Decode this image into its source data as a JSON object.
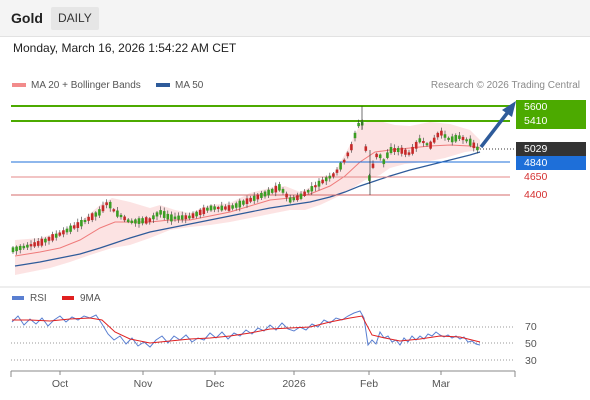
{
  "header": {
    "title": "Gold",
    "timeframe": "DAILY"
  },
  "timestamp": "Monday, March 16, 2026 1:54:22 AM CET",
  "legend": [
    {
      "label": "MA 20 + Bollinger Bands",
      "color": "#f28b8b"
    },
    {
      "label": "MA 50",
      "color": "#2e5b9a"
    }
  ],
  "credit": "Research © 2026 Trading Central",
  "levels": {
    "target_high": "5600",
    "target": "5410",
    "last": "5029",
    "pivot": "4840",
    "support1": "4650",
    "support2": "4400"
  },
  "rsi_legend": [
    {
      "label": "RSI",
      "color": "#5a7fd1"
    },
    {
      "label": "9MA",
      "color": "#e02020"
    }
  ],
  "rsi_levels": [
    "70",
    "50",
    "30"
  ],
  "months": [
    "Oct",
    "Nov",
    "Dec",
    "2026",
    "Feb",
    "Mar"
  ],
  "colors": {
    "green": "#4caa00",
    "blue": "#1e6fd9",
    "red": "#d43030",
    "dark": "#333333"
  }
}
